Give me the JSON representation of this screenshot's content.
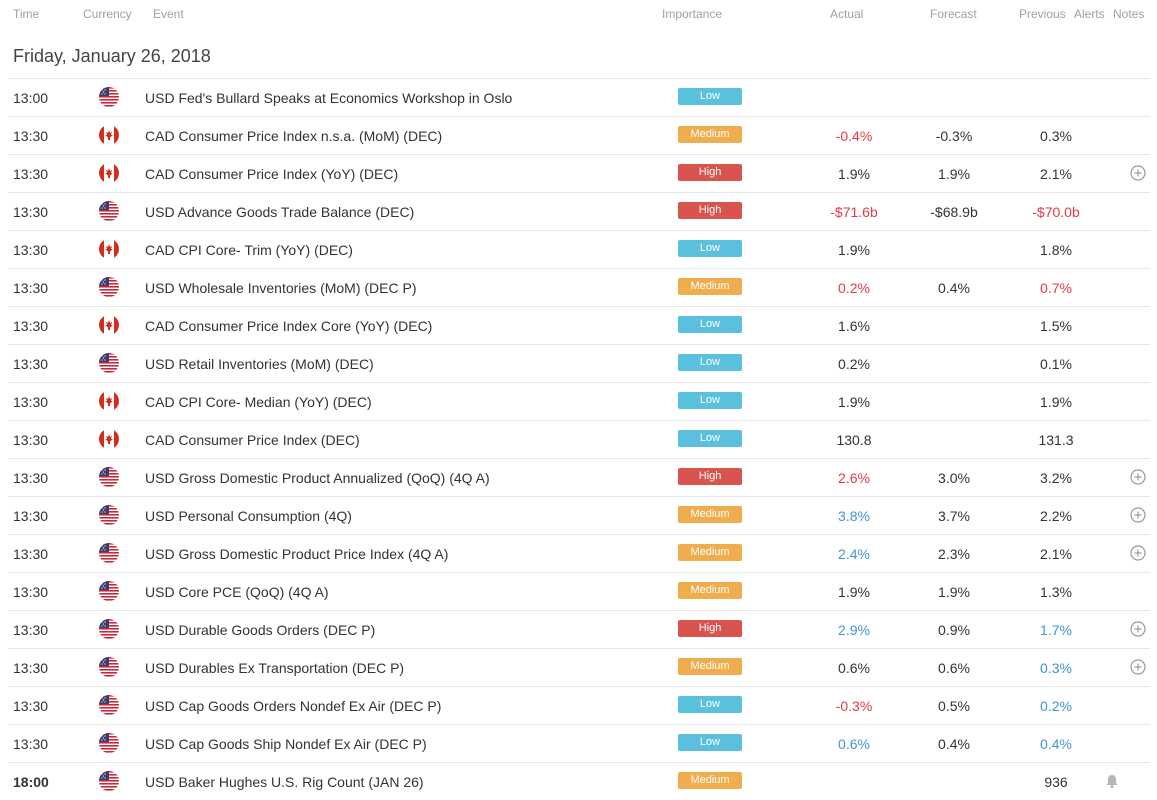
{
  "header": {
    "time": "Time",
    "currency": "Currency",
    "event": "Event",
    "importance": "Importance",
    "actual": "Actual",
    "forecast": "Forecast",
    "previous": "Previous",
    "alerts": "Alerts",
    "notes": "Notes"
  },
  "date_title": "Friday, January 26, 2018",
  "colors": {
    "negative": "#e53945",
    "positive": "#3d95d5",
    "low": "#5bc0de",
    "medium": "#f0ad4e",
    "high": "#d9534f"
  },
  "rows": [
    {
      "time": "13:00",
      "flag": "us-flag-icon",
      "event": "USD Fed's Bullard Speaks at Economics Workshop in Oslo",
      "importance": "Low",
      "actual": "",
      "actual_color": "neu",
      "forecast": "",
      "previous": "",
      "previous_color": "neu",
      "note": false,
      "alert": false
    },
    {
      "time": "13:30",
      "flag": "ca-flag-icon",
      "event": "CAD Consumer Price Index n.s.a. (MoM) (DEC)",
      "importance": "Medium",
      "actual": "-0.4%",
      "actual_color": "neg",
      "forecast": "-0.3%",
      "previous": "0.3%",
      "previous_color": "neu",
      "note": false,
      "alert": false
    },
    {
      "time": "13:30",
      "flag": "ca-flag-icon",
      "event": "CAD Consumer Price Index (YoY) (DEC)",
      "importance": "High",
      "actual": "1.9%",
      "actual_color": "neu",
      "forecast": "1.9%",
      "previous": "2.1%",
      "previous_color": "neu",
      "note": true,
      "alert": false
    },
    {
      "time": "13:30",
      "flag": "us-flag-icon",
      "event": "USD Advance Goods Trade Balance (DEC)",
      "importance": "High",
      "actual": "-$71.6b",
      "actual_color": "neg",
      "forecast": "-$68.9b",
      "previous": "-$70.0b",
      "previous_color": "neg",
      "note": false,
      "alert": false
    },
    {
      "time": "13:30",
      "flag": "ca-flag-icon",
      "event": "CAD CPI Core- Trim (YoY) (DEC)",
      "importance": "Low",
      "actual": "1.9%",
      "actual_color": "neu",
      "forecast": "",
      "previous": "1.8%",
      "previous_color": "neu",
      "note": false,
      "alert": false
    },
    {
      "time": "13:30",
      "flag": "us-flag-icon",
      "event": "USD Wholesale Inventories (MoM) (DEC P)",
      "importance": "Medium",
      "actual": "0.2%",
      "actual_color": "neg",
      "forecast": "0.4%",
      "previous": "0.7%",
      "previous_color": "neg",
      "note": false,
      "alert": false
    },
    {
      "time": "13:30",
      "flag": "ca-flag-icon",
      "event": "CAD Consumer Price Index Core (YoY) (DEC)",
      "importance": "Low",
      "actual": "1.6%",
      "actual_color": "neu",
      "forecast": "",
      "previous": "1.5%",
      "previous_color": "neu",
      "note": false,
      "alert": false
    },
    {
      "time": "13:30",
      "flag": "us-flag-icon",
      "event": "USD Retail Inventories (MoM) (DEC)",
      "importance": "Low",
      "actual": "0.2%",
      "actual_color": "neu",
      "forecast": "",
      "previous": "0.1%",
      "previous_color": "neu",
      "note": false,
      "alert": false
    },
    {
      "time": "13:30",
      "flag": "ca-flag-icon",
      "event": "CAD CPI Core- Median (YoY) (DEC)",
      "importance": "Low",
      "actual": "1.9%",
      "actual_color": "neu",
      "forecast": "",
      "previous": "1.9%",
      "previous_color": "neu",
      "note": false,
      "alert": false
    },
    {
      "time": "13:30",
      "flag": "ca-flag-icon",
      "event": "CAD Consumer Price Index (DEC)",
      "importance": "Low",
      "actual": "130.8",
      "actual_color": "neu",
      "forecast": "",
      "previous": "131.3",
      "previous_color": "neu",
      "note": false,
      "alert": false
    },
    {
      "time": "13:30",
      "flag": "us-flag-icon",
      "event": "USD Gross Domestic Product Annualized (QoQ) (4Q A)",
      "importance": "High",
      "actual": "2.6%",
      "actual_color": "neg",
      "forecast": "3.0%",
      "previous": "3.2%",
      "previous_color": "neu",
      "note": true,
      "alert": false
    },
    {
      "time": "13:30",
      "flag": "us-flag-icon",
      "event": "USD Personal Consumption (4Q)",
      "importance": "Medium",
      "actual": "3.8%",
      "actual_color": "pos",
      "forecast": "3.7%",
      "previous": "2.2%",
      "previous_color": "neu",
      "note": true,
      "alert": false
    },
    {
      "time": "13:30",
      "flag": "us-flag-icon",
      "event": "USD Gross Domestic Product Price Index (4Q A)",
      "importance": "Medium",
      "actual": "2.4%",
      "actual_color": "pos",
      "forecast": "2.3%",
      "previous": "2.1%",
      "previous_color": "neu",
      "note": true,
      "alert": false
    },
    {
      "time": "13:30",
      "flag": "us-flag-icon",
      "event": "USD Core PCE (QoQ) (4Q A)",
      "importance": "Medium",
      "actual": "1.9%",
      "actual_color": "neu",
      "forecast": "1.9%",
      "previous": "1.3%",
      "previous_color": "neu",
      "note": false,
      "alert": false
    },
    {
      "time": "13:30",
      "flag": "us-flag-icon",
      "event": "USD Durable Goods Orders (DEC P)",
      "importance": "High",
      "actual": "2.9%",
      "actual_color": "pos",
      "forecast": "0.9%",
      "previous": "1.7%",
      "previous_color": "pos",
      "note": true,
      "alert": false
    },
    {
      "time": "13:30",
      "flag": "us-flag-icon",
      "event": "USD Durables Ex Transportation (DEC P)",
      "importance": "Medium",
      "actual": "0.6%",
      "actual_color": "neu",
      "forecast": "0.6%",
      "previous": "0.3%",
      "previous_color": "pos",
      "note": true,
      "alert": false
    },
    {
      "time": "13:30",
      "flag": "us-flag-icon",
      "event": "USD Cap Goods Orders Nondef Ex Air (DEC P)",
      "importance": "Low",
      "actual": "-0.3%",
      "actual_color": "neg",
      "forecast": "0.5%",
      "previous": "0.2%",
      "previous_color": "pos",
      "note": false,
      "alert": false
    },
    {
      "time": "13:30",
      "flag": "us-flag-icon",
      "event": "USD Cap Goods Ship Nondef Ex Air (DEC P)",
      "importance": "Low",
      "actual": "0.6%",
      "actual_color": "pos",
      "forecast": "0.4%",
      "previous": "0.4%",
      "previous_color": "pos",
      "note": false,
      "alert": false
    },
    {
      "time": "18:00",
      "flag": "us-flag-icon",
      "event": "USD Baker Hughes U.S. Rig Count (JAN 26)",
      "importance": "Medium",
      "actual": "",
      "actual_color": "neu",
      "forecast": "",
      "previous": "936",
      "previous_color": "neu",
      "note": false,
      "alert": true,
      "time_bold": true
    }
  ]
}
